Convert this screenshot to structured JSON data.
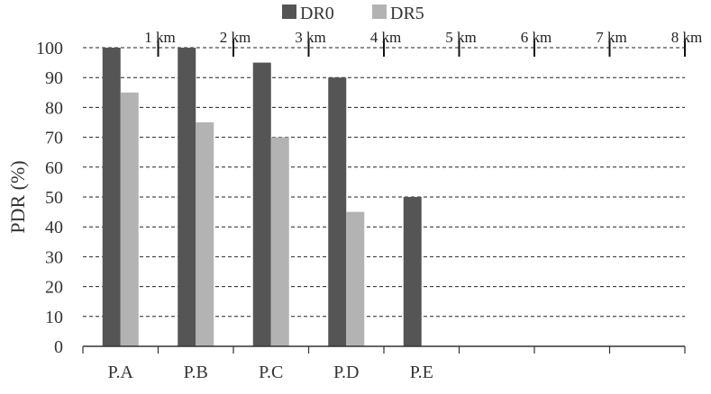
{
  "chart_data": {
    "type": "bar",
    "title": "",
    "xlabel": "",
    "ylabel": "PDR (%)",
    "ylim": [
      0,
      100
    ],
    "yticks": [
      0,
      10,
      20,
      30,
      40,
      50,
      60,
      70,
      80,
      90,
      100
    ],
    "grid": "dashed horizontal",
    "legend": "top-center",
    "categories": [
      "P.A",
      "P.B",
      "P.C",
      "P.D",
      "P.E",
      "",
      "",
      ""
    ],
    "series": [
      {
        "name": "DR0",
        "color": "#555555",
        "values": [
          100,
          100,
          95,
          90,
          50,
          null,
          null,
          null
        ]
      },
      {
        "name": "DR5",
        "color": "#b3b3b3",
        "values": [
          85,
          75,
          70,
          45,
          null,
          null,
          null,
          null
        ]
      }
    ],
    "distance_markers": [
      "1 km",
      "2 km",
      "3 km",
      "4 km",
      "5 km",
      "6 km",
      "7 km",
      "8 km"
    ]
  }
}
